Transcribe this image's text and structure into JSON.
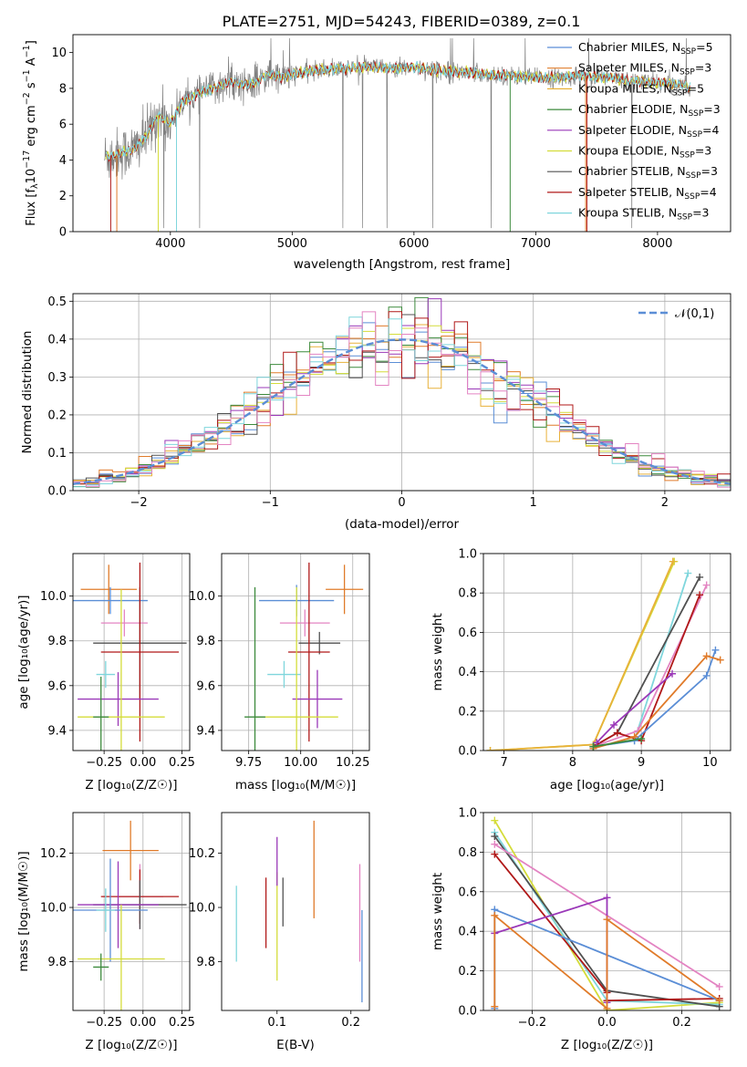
{
  "figure": {
    "title": "PLATE=2751, MJD=54243, FIBERID=0389, z=0.1"
  },
  "colors": {
    "Chabrier MILES": "#5b8ed6",
    "Salpeter MILES": "#e07b2a",
    "Kroupa MILES": "#e8b13a",
    "Chabrier ELODIE": "#3c8a3c",
    "Salpeter ELODIE": "#9a38b8",
    "Kroupa ELODIE": "#d4dc3a",
    "Chabrier STELIB": "#505050",
    "Salpeter STELIB": "#b01818",
    "Kroupa STELIB": "#7fd6dc",
    "Pink": "#e384c2",
    "Data": "#808080"
  },
  "chart_data": [
    {
      "type": "line",
      "panel": "spectrum",
      "xlabel": "wavelength [Angstrom, rest frame]",
      "ylabel_main": "Flux [f",
      "ylabel_sub": "λ",
      "ylabel_rest": "10",
      "ylabel_exp": "−17",
      "ylabel_end": " erg cm",
      "ylabel_exp2": "−2",
      "ylabel_end2": " s",
      "ylabel_exp3": "−1",
      "ylabel_end3": " A",
      "ylabel_exp4": "−1",
      "ylabel_close": "]",
      "xlim": [
        3200,
        8600
      ],
      "ylim": [
        0,
        11
      ],
      "xticks": [
        4000,
        5000,
        6000,
        7000,
        8000
      ],
      "yticks": [
        0,
        2,
        4,
        6,
        8,
        10
      ],
      "x": [
        3500,
        3600,
        3700,
        3800,
        3900,
        4000,
        4100,
        4200,
        4300,
        4400,
        4500,
        4600,
        4700,
        4800,
        4900,
        5000,
        5200,
        5400,
        5600,
        5800,
        6000,
        6200,
        6400,
        6600,
        6800,
        7000,
        7200,
        7400,
        7600,
        7800,
        8000,
        8200,
        8300
      ],
      "model_flux": [
        4.2,
        4.4,
        4.6,
        5.3,
        6.5,
        6.0,
        7.3,
        7.6,
        7.9,
        8.1,
        8.4,
        8.2,
        8.3,
        8.8,
        8.6,
        8.8,
        9.0,
        9.1,
        9.2,
        9.1,
        9.2,
        9.0,
        8.9,
        8.8,
        8.7,
        8.6,
        8.6,
        8.7,
        8.6,
        8.4,
        8.3,
        8.2,
        8.0
      ],
      "series": [
        {
          "name": "Chabrier MILES",
          "label_main": "Chabrier MILES, N",
          "label_sub": "SSP",
          "label_end": "=5"
        },
        {
          "name": "Salpeter MILES",
          "label_main": "Salpeter MILES, N",
          "label_sub": "SSP",
          "label_end": "=3"
        },
        {
          "name": "Kroupa MILES",
          "label_main": "Kroupa MILES, N",
          "label_sub": "SSP",
          "label_end": "=5"
        },
        {
          "name": "Chabrier ELODIE",
          "label_main": "Chabrier ELODIE, N",
          "label_sub": "SSP",
          "label_end": "=3"
        },
        {
          "name": "Salpeter ELODIE",
          "label_main": "Salpeter ELODIE, N",
          "label_sub": "SSP",
          "label_end": "=4"
        },
        {
          "name": "Kroupa ELODIE",
          "label_main": "Kroupa ELODIE, N",
          "label_sub": "SSP",
          "label_end": "=3"
        },
        {
          "name": "Chabrier STELIB",
          "label_main": "Chabrier STELIB, N",
          "label_sub": "SSP",
          "label_end": "=3"
        },
        {
          "name": "Salpeter STELIB",
          "label_main": "Salpeter STELIB, N",
          "label_sub": "SSP",
          "label_end": "=4"
        },
        {
          "name": "Kroupa STELIB",
          "label_main": "Kroupa STELIB, N",
          "label_sub": "SSP",
          "label_end": "=3"
        }
      ],
      "legend": "top-right",
      "grid": false
    },
    {
      "type": "line",
      "panel": "histogram",
      "xlabel": "(data-model)/error",
      "ylabel": "Normed distribution",
      "xlim": [
        -2.5,
        2.5
      ],
      "ylim": [
        0,
        0.52
      ],
      "xticks": [
        -2,
        -1,
        0,
        1,
        2
      ],
      "yticks": [
        0.0,
        0.1,
        0.2,
        0.3,
        0.4,
        0.5
      ],
      "bin_width": 0.1,
      "curve_label": "𝒩(0,1)",
      "grid": true,
      "legend": "top-right"
    },
    {
      "type": "scatter",
      "panel": "age-vs-metallicity",
      "xlabel": "Z [log₁₀(Z/Z☉)]",
      "ylabel": "age  [log₁₀(age/yr)]",
      "xlim": [
        -0.45,
        0.3
      ],
      "ylim": [
        9.31,
        10.19
      ],
      "xticks": [
        -0.25,
        0.0,
        0.25
      ],
      "yticks": [
        9.4,
        9.6,
        9.8,
        10.0
      ],
      "points": [
        {
          "series": "Salpeter MILES",
          "x": -0.22,
          "xerr": 0.18,
          "y": 10.03,
          "yerr": 0.11
        },
        {
          "series": "Chabrier MILES",
          "x": -0.21,
          "xerr": 0.24,
          "y": 9.98,
          "yerr": 0.06
        },
        {
          "series": "Pink",
          "x": -0.12,
          "xerr": 0.15,
          "y": 9.88,
          "yerr": 0.06
        },
        {
          "series": "Chabrier STELIB",
          "x": -0.02,
          "xerr": 0.3,
          "y": 9.79,
          "yerr": 0.25
        },
        {
          "series": "Salpeter STELIB",
          "x": -0.02,
          "xerr": 0.25,
          "y": 9.75,
          "yerr": 0.4
        },
        {
          "series": "Kroupa STELIB",
          "x": -0.24,
          "xerr": 0.06,
          "y": 9.65,
          "yerr": 0.06
        },
        {
          "series": "Salpeter ELODIE",
          "x": -0.16,
          "xerr": 0.26,
          "y": 9.54,
          "yerr": 0.12
        },
        {
          "series": "Kroupa ELODIE",
          "x": -0.14,
          "xerr": 0.28,
          "y": 9.46,
          "yerr": 0.57
        },
        {
          "series": "Chabrier ELODIE",
          "x": -0.27,
          "xerr": 0.05,
          "y": 9.46,
          "yerr": 0.18
        }
      ],
      "grid": true
    },
    {
      "type": "scatter",
      "panel": "age-vs-mass",
      "xlabel": "mass [log₁₀(M/M☉)]",
      "xlim": [
        9.62,
        10.33
      ],
      "ylim": [
        9.31,
        10.19
      ],
      "xticks": [
        9.75,
        10.0,
        10.25
      ],
      "yticks": [
        9.4,
        9.6,
        9.8,
        10.0
      ],
      "points": [
        {
          "series": "Salpeter MILES",
          "x": 10.21,
          "xerr": 0.09,
          "y": 10.03,
          "yerr": 0.11
        },
        {
          "series": "Chabrier MILES",
          "x": 9.98,
          "xerr": 0.18,
          "y": 9.98,
          "yerr": 0.07
        },
        {
          "series": "Pink",
          "x": 10.02,
          "xerr": 0.12,
          "y": 9.88,
          "yerr": 0.06
        },
        {
          "series": "Chabrier STELIB",
          "x": 10.09,
          "xerr": 0.1,
          "y": 9.79,
          "yerr": 0.05
        },
        {
          "series": "Salpeter STELIB",
          "x": 10.04,
          "xerr": 0.1,
          "y": 9.75,
          "yerr": 0.4
        },
        {
          "series": "Kroupa STELIB",
          "x": 9.92,
          "xerr": 0.08,
          "y": 9.65,
          "yerr": 0.06
        },
        {
          "series": "Salpeter ELODIE",
          "x": 10.08,
          "xerr": 0.12,
          "y": 9.54,
          "yerr": 0.13
        },
        {
          "series": "Kroupa ELODIE",
          "x": 9.98,
          "xerr": 0.2,
          "y": 9.46,
          "yerr": 0.58
        },
        {
          "series": "Chabrier ELODIE",
          "x": 9.78,
          "xerr": 0.05,
          "y": 9.46,
          "yerr": 0.58
        }
      ],
      "grid": true
    },
    {
      "type": "line",
      "panel": "mass-weight-vs-age",
      "xlabel": "age  [log₁₀(age/yr)]",
      "ylabel": "mass weight",
      "xlim": [
        6.7,
        10.3
      ],
      "ylim": [
        0,
        1
      ],
      "xticks": [
        7,
        8,
        9,
        10
      ],
      "yticks": [
        0.0,
        0.2,
        0.4,
        0.6,
        0.8,
        1.0
      ],
      "series": [
        {
          "name": "Kroupa ELODIE",
          "x": [
            6.8,
            8.3,
            9.48
          ],
          "y": [
            0.0,
            0.03,
            0.96
          ]
        },
        {
          "name": "Kroupa MILES",
          "x": [
            6.8,
            8.3,
            9.46
          ],
          "y": [
            0.0,
            0.03,
            0.96
          ]
        },
        {
          "name": "Kroupa STELIB",
          "x": [
            8.3,
            8.9,
            9.68
          ],
          "y": [
            0.02,
            0.05,
            0.9
          ]
        },
        {
          "name": "Chabrier STELIB",
          "x": [
            8.35,
            8.65,
            9.85
          ],
          "y": [
            0.03,
            0.09,
            0.88
          ]
        },
        {
          "name": "Pink",
          "x": [
            8.3,
            8.95,
            9.95
          ],
          "y": [
            0.02,
            0.1,
            0.84
          ]
        },
        {
          "name": "Salpeter STELIB",
          "x": [
            8.3,
            8.65,
            9.0,
            9.85
          ],
          "y": [
            0.02,
            0.09,
            0.05,
            0.79
          ]
        },
        {
          "name": "Salpeter ELODIE",
          "x": [
            8.35,
            8.6,
            9.45
          ],
          "y": [
            0.04,
            0.13,
            0.39
          ]
        },
        {
          "name": "Chabrier MILES",
          "x": [
            8.3,
            8.9,
            9.95,
            10.08
          ],
          "y": [
            0.02,
            0.05,
            0.38,
            0.51
          ]
        },
        {
          "name": "Salpeter MILES",
          "x": [
            8.3,
            8.9,
            9.95,
            10.15
          ],
          "y": [
            0.01,
            0.07,
            0.48,
            0.46
          ]
        },
        {
          "name": "Chabrier ELODIE",
          "x": [
            8.3,
            9.0
          ],
          "y": [
            0.02,
            0.06
          ]
        }
      ],
      "grid": true
    },
    {
      "type": "scatter",
      "panel": "mass-vs-metallicity",
      "xlabel": "Z [log₁₀(Z/Z☉)]",
      "ylabel": "mass [log₁₀(M/M☉)]",
      "xlim": [
        -0.45,
        0.3
      ],
      "ylim": [
        9.62,
        10.35
      ],
      "xticks": [
        -0.25,
        0.0,
        0.25
      ],
      "yticks": [
        9.8,
        10.0,
        10.2
      ],
      "points": [
        {
          "series": "Salpeter MILES",
          "x": -0.08,
          "xerr": 0.18,
          "y": 10.21,
          "yerr": 0.11
        },
        {
          "series": "Pink",
          "x": -0.02,
          "xerr": 0.15,
          "y": 10.04,
          "yerr": 0.12
        },
        {
          "series": "Salpeter STELIB",
          "x": -0.02,
          "xerr": 0.25,
          "y": 10.04,
          "yerr": 0.1
        },
        {
          "series": "Chabrier STELIB",
          "x": -0.02,
          "xerr": 0.3,
          "y": 10.01,
          "yerr": 0.09
        },
        {
          "series": "Salpeter ELODIE",
          "x": -0.16,
          "xerr": 0.26,
          "y": 10.01,
          "yerr": 0.16
        },
        {
          "series": "Chabrier MILES",
          "x": -0.21,
          "xerr": 0.24,
          "y": 9.99,
          "yerr": 0.19
        },
        {
          "series": "Kroupa STELIB",
          "x": -0.24,
          "xerr": 0.06,
          "y": 9.99,
          "yerr": 0.08
        },
        {
          "series": "Kroupa ELODIE",
          "x": -0.14,
          "xerr": 0.28,
          "y": 9.81,
          "yerr": 0.2
        },
        {
          "series": "Chabrier ELODIE",
          "x": -0.27,
          "xerr": 0.05,
          "y": 9.78,
          "yerr": 0.05
        }
      ],
      "grid": true
    },
    {
      "type": "scatter",
      "panel": "mass-vs-ebv",
      "xlabel": "E(B-V)",
      "xlim": [
        0.025,
        0.225
      ],
      "ylim": [
        9.62,
        10.35
      ],
      "xticks": [
        0.1,
        0.2
      ],
      "yticks": [
        9.8,
        10.0,
        10.2
      ],
      "points": [
        {
          "series": "Kroupa STELIB",
          "x": 0.045,
          "y": 9.94,
          "yerr": 0.14
        },
        {
          "series": "Salpeter STELIB",
          "x": 0.085,
          "y": 9.98,
          "yerr": 0.13
        },
        {
          "series": "Kroupa ELODIE",
          "x": 0.1,
          "y": 9.93,
          "yerr": 0.2
        },
        {
          "series": "Salpeter ELODIE",
          "x": 0.1,
          "y": 10.17,
          "yerr": 0.09
        },
        {
          "series": "Chabrier STELIB",
          "x": 0.108,
          "y": 10.02,
          "yerr": 0.09
        },
        {
          "series": "Salpeter MILES",
          "x": 0.15,
          "y": 10.14,
          "yerr": 0.18
        },
        {
          "series": "Pink",
          "x": 0.212,
          "y": 9.98,
          "yerr": 0.18
        },
        {
          "series": "Chabrier MILES",
          "x": 0.215,
          "y": 9.82,
          "yerr": 0.17
        }
      ],
      "grid": false
    },
    {
      "type": "line",
      "panel": "mass-weight-vs-metallicity",
      "xlabel": "Z [log₁₀(Z/Z☉)]",
      "ylabel": "mass weight",
      "xlim": [
        -0.33,
        0.33
      ],
      "ylim": [
        0,
        1
      ],
      "xticks": [
        -0.2,
        0.0,
        0.2
      ],
      "yticks": [
        0.0,
        0.2,
        0.4,
        0.6,
        0.8,
        1.0
      ],
      "series": [
        {
          "name": "Kroupa ELODIE",
          "x": [
            -0.3,
            0.0,
            0.3
          ],
          "y": [
            0.96,
            0.0,
            0.04
          ]
        },
        {
          "name": "Kroupa STELIB",
          "x": [
            -0.3,
            0.0,
            0.3
          ],
          "y": [
            0.9,
            0.05,
            0.03
          ]
        },
        {
          "name": "Chabrier STELIB",
          "x": [
            -0.3,
            0.0,
            0.3
          ],
          "y": [
            0.88,
            0.1,
            0.02
          ]
        },
        {
          "name": "Pink",
          "x": [
            -0.3,
            0.3
          ],
          "y": [
            0.84,
            0.12
          ]
        },
        {
          "name": "Salpeter STELIB",
          "x": [
            -0.3,
            0.0,
            0.0,
            0.3
          ],
          "y": [
            0.79,
            0.09,
            0.05,
            0.06
          ]
        },
        {
          "name": "Chabrier MILES",
          "x": [
            -0.3,
            -0.3,
            0.3
          ],
          "y": [
            0.01,
            0.51,
            0.05
          ]
        },
        {
          "name": "Salpeter ELODIE",
          "x": [
            -0.3,
            0.0,
            0.0
          ],
          "y": [
            0.39,
            0.57,
            0.04
          ]
        },
        {
          "name": "Salpeter MILES",
          "x": [
            -0.3,
            -0.3,
            0.0,
            0.0,
            0.3
          ],
          "y": [
            0.02,
            0.48,
            0.01,
            0.46,
            0.05
          ]
        }
      ],
      "grid": true
    }
  ]
}
